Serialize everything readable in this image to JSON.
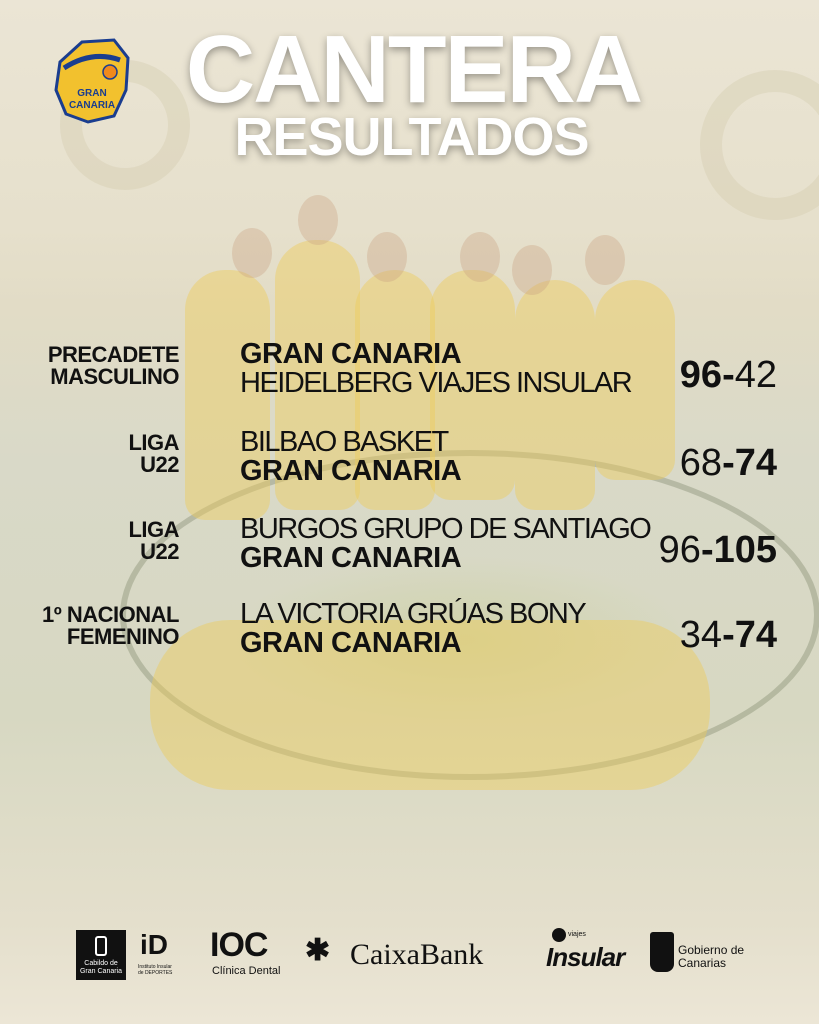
{
  "header": {
    "title": "CANTERA",
    "subtitle": "RESULTADOS",
    "club_logo_text": "GRAN CANARIA"
  },
  "results": [
    {
      "category": [
        "PRECADETE",
        "MASCULINO"
      ],
      "team1": "GRAN CANARIA",
      "team2": "HEIDELBERG VIAJES INSULAR",
      "team1_bold": true,
      "score1": "96",
      "score2": "42",
      "sep": "-",
      "winner": 1
    },
    {
      "category": [
        "LIGA",
        "U22"
      ],
      "team1": "BILBAO BASKET",
      "team2": "GRAN CANARIA",
      "team1_bold": false,
      "score1": "68",
      "score2": "74",
      "sep": "-",
      "winner": 2
    },
    {
      "category": [
        "LIGA",
        "U22"
      ],
      "team1": "BURGOS GRUPO DE SANTIAGO",
      "team2": "GRAN CANARIA",
      "team1_bold": false,
      "score1": "96",
      "score2": "105",
      "sep": "-",
      "winner": 2
    },
    {
      "category": [
        "1º NACIONAL",
        "FEMENINO"
      ],
      "team1": "LA VICTORIA GRÚAS BONY",
      "team2": "GRAN CANARIA",
      "team1_bold": false,
      "score1": "34",
      "score2": "74",
      "sep": "-",
      "winner": 2
    }
  ],
  "sponsors": {
    "cabildo": "Cabildo de Gran Canaria",
    "id": "iD",
    "id_sub": "Instituto Insular de DEPORTES",
    "ioc": "IOC",
    "ioc_sub": "Clínica Dental",
    "caixabank": "CaixaBank",
    "insular": "Insular",
    "insular_sub": "viajes",
    "gobierno": "Gobierno de Canarias"
  },
  "colors": {
    "accent": "#f2c12e",
    "text": "#111111",
    "title": "#ffffff"
  }
}
